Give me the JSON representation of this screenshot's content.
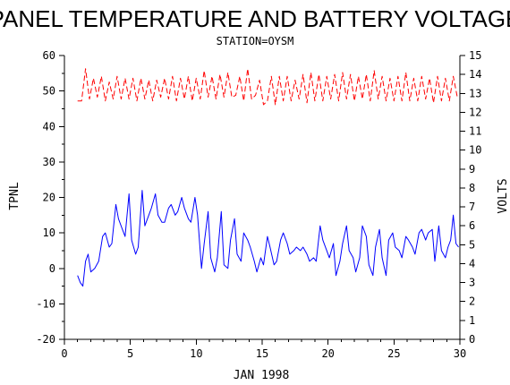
{
  "colors": {
    "temperature": "#0000ff",
    "voltage": "#ff0000",
    "axis": "#000000"
  },
  "chart_data": {
    "type": "line",
    "title": "PANEL TEMPERATURE AND BATTERY VOLTAGE",
    "subtitle": "STATION=OYSM",
    "xlabel": "JAN 1998",
    "ylabel_left": "TPNL",
    "ylabel_right": "VOLTS",
    "xlim": [
      0,
      30
    ],
    "ylim_left": [
      -20,
      60
    ],
    "ylim_right": [
      0,
      15
    ],
    "x_ticks": [
      0,
      5,
      10,
      15,
      20,
      25,
      30
    ],
    "y_ticks_left": [
      -20,
      -10,
      0,
      10,
      20,
      30,
      40,
      50,
      60
    ],
    "y_ticks_right": [
      0,
      1,
      2,
      3,
      4,
      5,
      6,
      7,
      8,
      9,
      10,
      11,
      12,
      13,
      14,
      15
    ],
    "grid": false,
    "series": [
      {
        "name": "TPNL",
        "axis": "left",
        "style": "solid",
        "x": [
          1.0,
          1.2,
          1.4,
          1.6,
          1.8,
          2.0,
          2.3,
          2.6,
          2.9,
          3.1,
          3.4,
          3.6,
          3.9,
          4.1,
          4.4,
          4.6,
          4.9,
          5.1,
          5.4,
          5.6,
          5.9,
          6.1,
          6.4,
          6.6,
          6.9,
          7.1,
          7.4,
          7.6,
          7.9,
          8.1,
          8.4,
          8.6,
          8.9,
          9.1,
          9.4,
          9.6,
          9.9,
          10.1,
          10.4,
          10.6,
          10.9,
          11.1,
          11.4,
          11.6,
          11.9,
          12.1,
          12.4,
          12.6,
          12.9,
          13.1,
          13.4,
          13.6,
          13.9,
          14.1,
          14.4,
          14.6,
          14.9,
          15.1,
          15.4,
          15.6,
          15.9,
          16.1,
          16.4,
          16.6,
          16.9,
          17.1,
          17.4,
          17.6,
          17.9,
          18.1,
          18.4,
          18.6,
          18.9,
          19.1,
          19.4,
          19.6,
          19.9,
          20.1,
          20.4,
          20.6,
          20.9,
          21.1,
          21.4,
          21.6,
          21.9,
          22.1,
          22.4,
          22.6,
          22.9,
          23.1,
          23.4,
          23.6,
          23.9,
          24.1,
          24.4,
          24.6,
          24.9,
          25.1,
          25.4,
          25.6,
          25.9,
          26.1,
          26.4,
          26.6,
          26.9,
          27.1,
          27.4,
          27.6,
          27.9,
          28.1,
          28.4,
          28.6,
          28.9,
          29.1,
          29.3,
          29.5,
          29.7,
          29.9
        ],
        "values": [
          -2,
          -4,
          -5,
          2,
          4,
          -1,
          0,
          2,
          9,
          10,
          6,
          7,
          18,
          14,
          11,
          9,
          21,
          8,
          4,
          6,
          22,
          12,
          15,
          17,
          21,
          15,
          13,
          13,
          17,
          18,
          15,
          16,
          20,
          17,
          14,
          13,
          20,
          15,
          0,
          7,
          16,
          3,
          -1,
          3,
          16,
          1,
          0,
          8,
          14,
          4,
          2,
          10,
          8,
          6,
          2,
          -1,
          3,
          1,
          9,
          6,
          1,
          2,
          8,
          10,
          7,
          4,
          5,
          6,
          5,
          6,
          4,
          2,
          3,
          2,
          12,
          8,
          5,
          3,
          7,
          -2,
          2,
          7,
          12,
          5,
          3,
          -1,
          3,
          12,
          9,
          1,
          -2,
          6,
          11,
          3,
          -2,
          8,
          10,
          6,
          5,
          3,
          9,
          8,
          6,
          4,
          10,
          11,
          8,
          10,
          11,
          2,
          12,
          5,
          3,
          6,
          8,
          15,
          7,
          6
        ]
      },
      {
        "name": "VOLTS",
        "axis": "right",
        "style": "dashed",
        "x": [
          1.0,
          1.3,
          1.6,
          1.9,
          2.2,
          2.5,
          2.8,
          3.1,
          3.4,
          3.7,
          4.0,
          4.3,
          4.6,
          4.9,
          5.2,
          5.5,
          5.8,
          6.1,
          6.4,
          6.7,
          7.0,
          7.3,
          7.6,
          7.9,
          8.2,
          8.5,
          8.8,
          9.1,
          9.4,
          9.7,
          10.0,
          10.3,
          10.6,
          10.9,
          11.2,
          11.5,
          11.8,
          12.1,
          12.4,
          12.7,
          13.0,
          13.3,
          13.6,
          13.9,
          14.2,
          14.5,
          14.8,
          15.1,
          15.4,
          15.7,
          16.0,
          16.3,
          16.6,
          16.9,
          17.2,
          17.5,
          17.8,
          18.1,
          18.4,
          18.7,
          19.0,
          19.3,
          19.6,
          19.9,
          20.2,
          20.5,
          20.8,
          21.1,
          21.4,
          21.7,
          22.0,
          22.3,
          22.6,
          22.9,
          23.2,
          23.5,
          23.8,
          24.1,
          24.4,
          24.7,
          25.0,
          25.3,
          25.6,
          25.9,
          26.2,
          26.5,
          26.8,
          27.1,
          27.4,
          27.7,
          28.0,
          28.3,
          28.6,
          28.9,
          29.2,
          29.5,
          29.8
        ],
        "values": [
          12.6,
          12.6,
          14.3,
          12.7,
          13.8,
          12.8,
          13.9,
          12.6,
          13.6,
          12.7,
          13.9,
          12.7,
          13.8,
          12.7,
          13.8,
          12.6,
          13.8,
          12.7,
          13.7,
          12.6,
          13.7,
          12.8,
          13.8,
          12.7,
          13.9,
          12.6,
          13.8,
          12.7,
          13.9,
          12.6,
          13.8,
          12.7,
          14.2,
          12.8,
          13.9,
          12.7,
          14.0,
          12.8,
          14.1,
          12.8,
          12.9,
          13.9,
          12.6,
          14.3,
          12.7,
          12.9,
          13.7,
          12.4,
          12.6,
          13.9,
          12.4,
          13.9,
          12.6,
          13.9,
          12.6,
          13.7,
          12.7,
          14.0,
          12.5,
          14.1,
          12.6,
          14.0,
          12.6,
          13.9,
          12.7,
          14.0,
          12.6,
          14.1,
          12.7,
          14.0,
          12.6,
          13.9,
          12.7,
          14.0,
          12.6,
          14.2,
          12.7,
          13.9,
          12.6,
          13.8,
          12.6,
          13.9,
          12.6,
          14.1,
          12.6,
          13.8,
          12.6,
          13.9,
          12.7,
          13.8,
          12.5,
          13.9,
          12.6,
          13.8,
          12.6,
          13.9,
          12.8
        ]
      }
    ]
  }
}
